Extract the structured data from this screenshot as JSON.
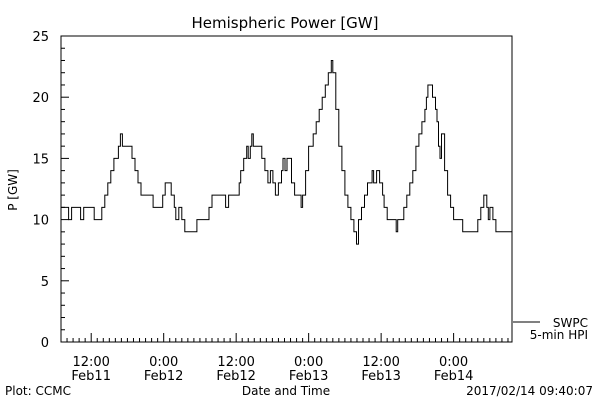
{
  "chart_data": {
    "type": "line",
    "title": "Hemispheric Power [GW]",
    "xlabel": "Date and Time",
    "ylabel": "P [GW]",
    "ylim": [
      0,
      25
    ],
    "yticks": [
      0,
      5,
      10,
      15,
      20,
      25
    ],
    "xlim": [
      "2017-02-11T07:00",
      "2017-02-14T09:40"
    ],
    "xticks": [
      {
        "at": "2017-02-11T12:00",
        "time": "12:00",
        "date": "Feb11"
      },
      {
        "at": "2017-02-12T00:00",
        "time": "0:00",
        "date": "Feb12"
      },
      {
        "at": "2017-02-12T12:00",
        "time": "12:00",
        "date": "Feb12"
      },
      {
        "at": "2017-02-13T00:00",
        "time": "0:00",
        "date": "Feb13"
      },
      {
        "at": "2017-02-13T12:00",
        "time": "12:00",
        "date": "Feb13"
      },
      {
        "at": "2017-02-14T00:00",
        "time": "0:00",
        "date": "Feb14"
      }
    ],
    "grid": false,
    "legend_position": "bottom-right",
    "series": [
      {
        "name": "5-min HPI",
        "color": "#000000",
        "points": [
          [
            "2017-02-11T07:00",
            11
          ],
          [
            "2017-02-11T08:00",
            11
          ],
          [
            "2017-02-11T08:15",
            10
          ],
          [
            "2017-02-11T08:45",
            11
          ],
          [
            "2017-02-11T10:00",
            11
          ],
          [
            "2017-02-11T10:15",
            10
          ],
          [
            "2017-02-11T10:45",
            11
          ],
          [
            "2017-02-11T12:15",
            11
          ],
          [
            "2017-02-11T12:30",
            10
          ],
          [
            "2017-02-11T13:15",
            10
          ],
          [
            "2017-02-11T13:45",
            11
          ],
          [
            "2017-02-11T14:15",
            12
          ],
          [
            "2017-02-11T14:45",
            13
          ],
          [
            "2017-02-11T15:15",
            14
          ],
          [
            "2017-02-11T15:45",
            15
          ],
          [
            "2017-02-11T16:30",
            16
          ],
          [
            "2017-02-11T16:50",
            17
          ],
          [
            "2017-02-11T17:10",
            16
          ],
          [
            "2017-02-11T18:15",
            16
          ],
          [
            "2017-02-11T18:45",
            15
          ],
          [
            "2017-02-11T19:15",
            14
          ],
          [
            "2017-02-11T19:45",
            13
          ],
          [
            "2017-02-11T20:15",
            12
          ],
          [
            "2017-02-11T21:45",
            12
          ],
          [
            "2017-02-11T22:15",
            11
          ],
          [
            "2017-02-11T23:30",
            11
          ],
          [
            "2017-02-11T23:50",
            12
          ],
          [
            "2017-02-12T00:15",
            13
          ],
          [
            "2017-02-12T00:45",
            13
          ],
          [
            "2017-02-12T01:15",
            12
          ],
          [
            "2017-02-12T01:45",
            11
          ],
          [
            "2017-02-12T02:00",
            10
          ],
          [
            "2017-02-12T02:30",
            11
          ],
          [
            "2017-02-12T03:00",
            10
          ],
          [
            "2017-02-12T03:30",
            9
          ],
          [
            "2017-02-12T05:00",
            9
          ],
          [
            "2017-02-12T05:30",
            10
          ],
          [
            "2017-02-12T07:00",
            10
          ],
          [
            "2017-02-12T07:30",
            11
          ],
          [
            "2017-02-12T08:00",
            12
          ],
          [
            "2017-02-12T10:00",
            12
          ],
          [
            "2017-02-12T10:15",
            11
          ],
          [
            "2017-02-12T10:45",
            12
          ],
          [
            "2017-02-12T12:00",
            12
          ],
          [
            "2017-02-12T12:30",
            13
          ],
          [
            "2017-02-12T12:45",
            14
          ],
          [
            "2017-02-12T13:15",
            15
          ],
          [
            "2017-02-12T13:45",
            16
          ],
          [
            "2017-02-12T14:00",
            15
          ],
          [
            "2017-02-12T14:20",
            16
          ],
          [
            "2017-02-12T14:35",
            17
          ],
          [
            "2017-02-12T14:50",
            16
          ],
          [
            "2017-02-12T15:45",
            16
          ],
          [
            "2017-02-12T16:15",
            15
          ],
          [
            "2017-02-12T16:45",
            14
          ],
          [
            "2017-02-12T17:15",
            13
          ],
          [
            "2017-02-12T17:40",
            14
          ],
          [
            "2017-02-12T18:05",
            13
          ],
          [
            "2017-02-12T18:30",
            12
          ],
          [
            "2017-02-12T19:00",
            13
          ],
          [
            "2017-02-12T19:30",
            14
          ],
          [
            "2017-02-12T19:45",
            15
          ],
          [
            "2017-02-12T20:05",
            14
          ],
          [
            "2017-02-12T20:25",
            15
          ],
          [
            "2017-02-12T20:50",
            15
          ],
          [
            "2017-02-12T21:10",
            13
          ],
          [
            "2017-02-12T21:40",
            12
          ],
          [
            "2017-02-12T22:20",
            12
          ],
          [
            "2017-02-12T22:45",
            11
          ],
          [
            "2017-02-12T23:00",
            12
          ],
          [
            "2017-02-12T23:30",
            14
          ],
          [
            "2017-02-13T00:00",
            16
          ],
          [
            "2017-02-13T00:45",
            17
          ],
          [
            "2017-02-13T01:15",
            18
          ],
          [
            "2017-02-13T01:45",
            19
          ],
          [
            "2017-02-13T02:15",
            20
          ],
          [
            "2017-02-13T02:45",
            21
          ],
          [
            "2017-02-13T03:15",
            22
          ],
          [
            "2017-02-13T03:45",
            23
          ],
          [
            "2017-02-13T04:00",
            22
          ],
          [
            "2017-02-13T04:30",
            19
          ],
          [
            "2017-02-13T05:00",
            16
          ],
          [
            "2017-02-13T05:30",
            14
          ],
          [
            "2017-02-13T06:00",
            12
          ],
          [
            "2017-02-13T06:30",
            11
          ],
          [
            "2017-02-13T07:00",
            10
          ],
          [
            "2017-02-13T07:30",
            9
          ],
          [
            "2017-02-13T07:55",
            8
          ],
          [
            "2017-02-13T08:15",
            10
          ],
          [
            "2017-02-13T08:45",
            11
          ],
          [
            "2017-02-13T09:15",
            12
          ],
          [
            "2017-02-13T09:45",
            13
          ],
          [
            "2017-02-13T10:15",
            13
          ],
          [
            "2017-02-13T10:30",
            14
          ],
          [
            "2017-02-13T10:45",
            13
          ],
          [
            "2017-02-13T11:15",
            14
          ],
          [
            "2017-02-13T11:45",
            13
          ],
          [
            "2017-02-13T12:15",
            12
          ],
          [
            "2017-02-13T12:30",
            11
          ],
          [
            "2017-02-13T13:00",
            10
          ],
          [
            "2017-02-13T14:15",
            10
          ],
          [
            "2017-02-13T14:30",
            9
          ],
          [
            "2017-02-13T14:45",
            10
          ],
          [
            "2017-02-13T15:15",
            10
          ],
          [
            "2017-02-13T15:45",
            11
          ],
          [
            "2017-02-13T16:15",
            12
          ],
          [
            "2017-02-13T16:45",
            13
          ],
          [
            "2017-02-13T17:15",
            14
          ],
          [
            "2017-02-13T17:45",
            16
          ],
          [
            "2017-02-13T18:15",
            17
          ],
          [
            "2017-02-13T18:45",
            18
          ],
          [
            "2017-02-13T19:15",
            19
          ],
          [
            "2017-02-13T19:30",
            20
          ],
          [
            "2017-02-13T19:45",
            21
          ],
          [
            "2017-02-13T20:15",
            21
          ],
          [
            "2017-02-13T20:30",
            20
          ],
          [
            "2017-02-13T21:00",
            19
          ],
          [
            "2017-02-13T21:15",
            18
          ],
          [
            "2017-02-13T21:30",
            16
          ],
          [
            "2017-02-13T21:45",
            15
          ],
          [
            "2017-02-13T22:00",
            17
          ],
          [
            "2017-02-13T22:30",
            14
          ],
          [
            "2017-02-13T23:00",
            12
          ],
          [
            "2017-02-13T23:30",
            11
          ],
          [
            "2017-02-14T00:00",
            10
          ],
          [
            "2017-02-14T01:15",
            10
          ],
          [
            "2017-02-14T01:30",
            9
          ],
          [
            "2017-02-14T03:30",
            9
          ],
          [
            "2017-02-14T04:00",
            10
          ],
          [
            "2017-02-14T04:30",
            11
          ],
          [
            "2017-02-14T05:00",
            12
          ],
          [
            "2017-02-14T05:30",
            11
          ],
          [
            "2017-02-14T05:45",
            10
          ],
          [
            "2017-02-14T06:00",
            11
          ],
          [
            "2017-02-14T06:30",
            10
          ],
          [
            "2017-02-14T07:00",
            9
          ],
          [
            "2017-02-14T09:40",
            9
          ]
        ]
      }
    ],
    "legend": {
      "title": "SWPC",
      "entry": "5-min HPI"
    }
  },
  "footer": {
    "left": "Plot: CCMC",
    "right": "2017/02/14 09:40:07"
  },
  "colors": {
    "background": "#ffffff",
    "ink": "#000000"
  }
}
